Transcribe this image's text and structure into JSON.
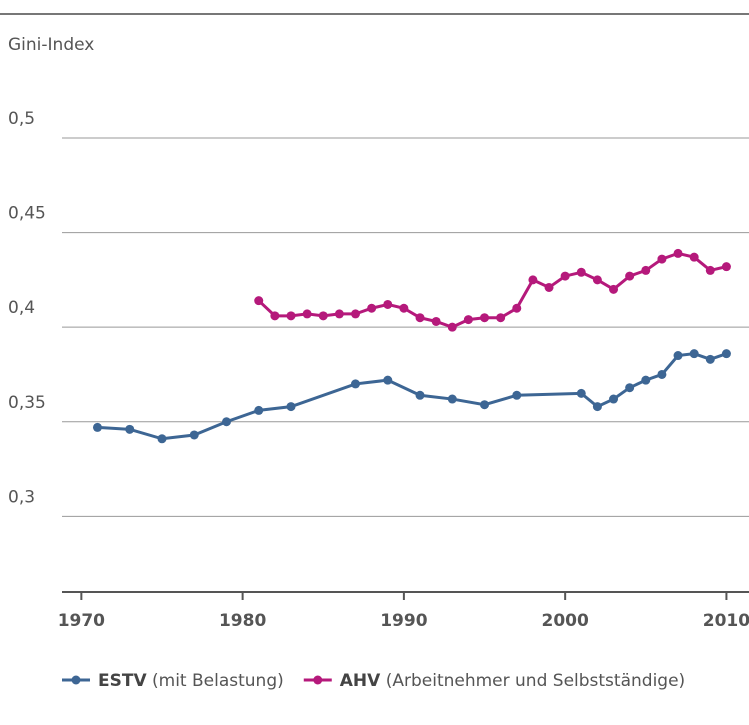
{
  "chart_data": {
    "type": "line",
    "y_axis_label": "Gini-Index",
    "xlim": [
      1968.8,
      2011.4
    ],
    "xticks": [
      1970,
      1980,
      1990,
      2000,
      2010
    ],
    "ylim": [
      0.26,
      0.5
    ],
    "yticks": [
      {
        "value": 0.3,
        "label": "0,3"
      },
      {
        "value": 0.35,
        "label": "0,35"
      },
      {
        "value": 0.4,
        "label": "0,4"
      },
      {
        "value": 0.45,
        "label": "0,45"
      },
      {
        "value": 0.5,
        "label": "0,5"
      }
    ],
    "grid": true,
    "legend": "bottom",
    "series": [
      {
        "name": "ESTV",
        "description": "(mit Belastung)",
        "color": "#3d6694",
        "x": [
          1971,
          1973,
          1975,
          1977,
          1979,
          1981,
          1983,
          1987,
          1989,
          1991,
          1993,
          1995,
          1997,
          2001,
          2002,
          2003,
          2004,
          2005,
          2006,
          2007,
          2008,
          2009,
          2010
        ],
        "values": [
          0.347,
          0.346,
          0.341,
          0.343,
          0.35,
          0.356,
          0.358,
          0.37,
          0.372,
          0.364,
          0.362,
          0.359,
          0.364,
          0.365,
          0.358,
          0.362,
          0.368,
          0.372,
          0.375,
          0.385,
          0.386,
          0.383,
          0.386
        ]
      },
      {
        "name": "AHV",
        "description": "(Arbeitnehmer und Selbstständige)",
        "color": "#b5197b",
        "x": [
          1981,
          1982,
          1983,
          1984,
          1985,
          1986,
          1987,
          1988,
          1989,
          1990,
          1991,
          1992,
          1993,
          1994,
          1995,
          1996,
          1997,
          1998,
          1999,
          2000,
          2001,
          2002,
          2003,
          2004,
          2005,
          2006,
          2007,
          2008,
          2009,
          2010
        ],
        "values": [
          0.414,
          0.406,
          0.406,
          0.407,
          0.406,
          0.407,
          0.407,
          0.41,
          0.412,
          0.41,
          0.405,
          0.403,
          0.4,
          0.404,
          0.405,
          0.405,
          0.41,
          0.425,
          0.421,
          0.427,
          0.429,
          0.425,
          0.42,
          0.427,
          0.43,
          0.436,
          0.439,
          0.437,
          0.43,
          0.432
        ]
      }
    ]
  }
}
